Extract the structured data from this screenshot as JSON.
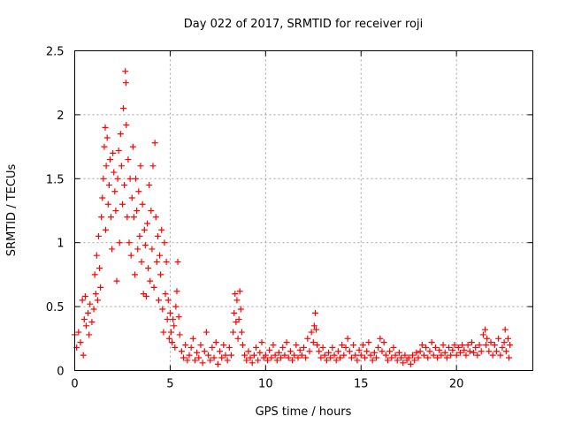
{
  "chart_data": {
    "type": "scatter",
    "title": "Day 022 of 2017, SRMTID for receiver roji",
    "xlabel": "GPS time / hours",
    "ylabel": "SRMTID / TECUs",
    "xlim": [
      0,
      24
    ],
    "ylim": [
      0,
      2.5
    ],
    "x_ticks": [
      0,
      5,
      10,
      15,
      20
    ],
    "x_tick_labels": [
      "0",
      "5",
      "10",
      "15",
      "20"
    ],
    "y_ticks": [
      0,
      0.5,
      1,
      1.5,
      2,
      2.5
    ],
    "y_tick_labels": [
      "0",
      "0.5",
      "1",
      "1.5",
      "2",
      "2.5"
    ],
    "grid": true,
    "marker": "+",
    "series": [
      {
        "name": "SRMTID",
        "color": "#ff0000",
        "points": [
          [
            0.0,
            0.28
          ],
          [
            0.1,
            0.18
          ],
          [
            0.2,
            0.3
          ],
          [
            0.3,
            0.22
          ],
          [
            0.4,
            0.55
          ],
          [
            0.45,
            0.12
          ],
          [
            0.5,
            0.4
          ],
          [
            0.55,
            0.58
          ],
          [
            0.6,
            0.35
          ],
          [
            0.7,
            0.45
          ],
          [
            0.75,
            0.28
          ],
          [
            0.8,
            0.52
          ],
          [
            0.9,
            0.38
          ],
          [
            1.0,
            0.48
          ],
          [
            1.05,
            0.75
          ],
          [
            1.1,
            0.6
          ],
          [
            1.15,
            0.9
          ],
          [
            1.2,
            0.55
          ],
          [
            1.25,
            1.05
          ],
          [
            1.3,
            0.8
          ],
          [
            1.35,
            0.65
          ],
          [
            1.4,
            1.2
          ],
          [
            1.45,
            1.35
          ],
          [
            1.5,
            1.5
          ],
          [
            1.55,
            1.75
          ],
          [
            1.6,
            1.9
          ],
          [
            1.62,
            1.1
          ],
          [
            1.65,
            1.6
          ],
          [
            1.7,
            1.82
          ],
          [
            1.75,
            1.3
          ],
          [
            1.8,
            1.45
          ],
          [
            1.85,
            1.65
          ],
          [
            1.9,
            1.2
          ],
          [
            1.95,
            0.95
          ],
          [
            2.0,
            1.7
          ],
          [
            2.05,
            1.55
          ],
          [
            2.1,
            1.4
          ],
          [
            2.15,
            1.25
          ],
          [
            2.2,
            0.7
          ],
          [
            2.25,
            1.5
          ],
          [
            2.3,
            1.72
          ],
          [
            2.35,
            1.0
          ],
          [
            2.4,
            1.85
          ],
          [
            2.45,
            1.6
          ],
          [
            2.5,
            1.3
          ],
          [
            2.55,
            2.05
          ],
          [
            2.6,
            1.45
          ],
          [
            2.65,
            2.34
          ],
          [
            2.68,
            2.25
          ],
          [
            2.7,
            1.92
          ],
          [
            2.75,
            1.2
          ],
          [
            2.8,
            1.65
          ],
          [
            2.85,
            1.0
          ],
          [
            2.9,
            1.5
          ],
          [
            2.95,
            0.9
          ],
          [
            3.0,
            1.35
          ],
          [
            3.05,
            1.75
          ],
          [
            3.1,
            1.2
          ],
          [
            3.15,
            0.75
          ],
          [
            3.2,
            1.5
          ],
          [
            3.25,
            1.25
          ],
          [
            3.3,
            0.95
          ],
          [
            3.35,
            1.4
          ],
          [
            3.4,
            1.05
          ],
          [
            3.45,
            1.6
          ],
          [
            3.5,
            0.85
          ],
          [
            3.55,
            1.3
          ],
          [
            3.6,
            0.6
          ],
          [
            3.65,
            1.1
          ],
          [
            3.7,
            0.98
          ],
          [
            3.75,
            0.58
          ],
          [
            3.8,
            1.15
          ],
          [
            3.85,
            0.8
          ],
          [
            3.9,
            1.45
          ],
          [
            3.95,
            0.7
          ],
          [
            4.0,
            1.25
          ],
          [
            4.05,
            0.95
          ],
          [
            4.1,
            1.6
          ],
          [
            4.15,
            0.65
          ],
          [
            4.2,
            1.78
          ],
          [
            4.25,
            1.2
          ],
          [
            4.3,
            0.85
          ],
          [
            4.35,
            1.05
          ],
          [
            4.4,
            0.55
          ],
          [
            4.45,
            0.9
          ],
          [
            4.5,
            0.75
          ],
          [
            4.55,
            1.1
          ],
          [
            4.6,
            0.48
          ],
          [
            4.65,
            0.3
          ],
          [
            4.7,
            1.0
          ],
          [
            4.75,
            0.6
          ],
          [
            4.8,
            0.85
          ],
          [
            4.85,
            0.4
          ],
          [
            4.9,
            0.55
          ],
          [
            4.95,
            0.25
          ],
          [
            5.0,
            0.45
          ],
          [
            5.05,
            0.3
          ],
          [
            5.1,
            0.22
          ],
          [
            5.15,
            0.4
          ],
          [
            5.2,
            0.35
          ],
          [
            5.25,
            0.18
          ],
          [
            5.3,
            0.5
          ],
          [
            5.35,
            0.62
          ],
          [
            5.4,
            0.85
          ],
          [
            5.45,
            0.42
          ],
          [
            5.5,
            0.28
          ],
          [
            5.6,
            0.15
          ],
          [
            5.7,
            0.1
          ],
          [
            5.8,
            0.2
          ],
          [
            5.9,
            0.08
          ],
          [
            6.0,
            0.12
          ],
          [
            6.1,
            0.18
          ],
          [
            6.2,
            0.25
          ],
          [
            6.3,
            0.08
          ],
          [
            6.4,
            0.14
          ],
          [
            6.5,
            0.1
          ],
          [
            6.6,
            0.2
          ],
          [
            6.7,
            0.06
          ],
          [
            6.8,
            0.15
          ],
          [
            6.9,
            0.3
          ],
          [
            7.0,
            0.12
          ],
          [
            7.1,
            0.08
          ],
          [
            7.2,
            0.18
          ],
          [
            7.3,
            0.1
          ],
          [
            7.4,
            0.22
          ],
          [
            7.5,
            0.05
          ],
          [
            7.6,
            0.15
          ],
          [
            7.7,
            0.1
          ],
          [
            7.8,
            0.2
          ],
          [
            7.9,
            0.12
          ],
          [
            8.0,
            0.08
          ],
          [
            8.1,
            0.18
          ],
          [
            8.2,
            0.12
          ],
          [
            8.3,
            0.3
          ],
          [
            8.35,
            0.45
          ],
          [
            8.4,
            0.6
          ],
          [
            8.45,
            0.38
          ],
          [
            8.5,
            0.55
          ],
          [
            8.55,
            0.25
          ],
          [
            8.6,
            0.4
          ],
          [
            8.65,
            0.62
          ],
          [
            8.7,
            0.48
          ],
          [
            8.75,
            0.3
          ],
          [
            8.8,
            0.2
          ],
          [
            8.9,
            0.12
          ],
          [
            9.0,
            0.08
          ],
          [
            9.1,
            0.15
          ],
          [
            9.2,
            0.1
          ],
          [
            9.3,
            0.06
          ],
          [
            9.4,
            0.12
          ],
          [
            9.5,
            0.18
          ],
          [
            9.6,
            0.08
          ],
          [
            9.7,
            0.14
          ],
          [
            9.8,
            0.22
          ],
          [
            9.9,
            0.1
          ],
          [
            10.0,
            0.12
          ],
          [
            10.1,
            0.08
          ],
          [
            10.2,
            0.16
          ],
          [
            10.3,
            0.1
          ],
          [
            10.4,
            0.2
          ],
          [
            10.5,
            0.12
          ],
          [
            10.6,
            0.08
          ],
          [
            10.7,
            0.14
          ],
          [
            10.8,
            0.1
          ],
          [
            10.9,
            0.18
          ],
          [
            11.0,
            0.12
          ],
          [
            11.1,
            0.22
          ],
          [
            11.2,
            0.1
          ],
          [
            11.3,
            0.15
          ],
          [
            11.4,
            0.08
          ],
          [
            11.5,
            0.12
          ],
          [
            11.6,
            0.2
          ],
          [
            11.7,
            0.1
          ],
          [
            11.8,
            0.16
          ],
          [
            11.9,
            0.12
          ],
          [
            12.0,
            0.18
          ],
          [
            12.1,
            0.1
          ],
          [
            12.2,
            0.25
          ],
          [
            12.3,
            0.15
          ],
          [
            12.4,
            0.3
          ],
          [
            12.5,
            0.22
          ],
          [
            12.55,
            0.35
          ],
          [
            12.6,
            0.45
          ],
          [
            12.65,
            0.32
          ],
          [
            12.7,
            0.2
          ],
          [
            12.8,
            0.15
          ],
          [
            12.9,
            0.1
          ],
          [
            13.0,
            0.18
          ],
          [
            13.1,
            0.12
          ],
          [
            13.2,
            0.08
          ],
          [
            13.3,
            0.14
          ],
          [
            13.4,
            0.1
          ],
          [
            13.5,
            0.18
          ],
          [
            13.6,
            0.12
          ],
          [
            13.7,
            0.08
          ],
          [
            13.8,
            0.15
          ],
          [
            13.9,
            0.1
          ],
          [
            14.0,
            0.2
          ],
          [
            14.1,
            0.12
          ],
          [
            14.2,
            0.18
          ],
          [
            14.3,
            0.25
          ],
          [
            14.4,
            0.15
          ],
          [
            14.5,
            0.1
          ],
          [
            14.6,
            0.2
          ],
          [
            14.7,
            0.12
          ],
          [
            14.8,
            0.08
          ],
          [
            14.9,
            0.16
          ],
          [
            15.0,
            0.12
          ],
          [
            15.1,
            0.2
          ],
          [
            15.2,
            0.1
          ],
          [
            15.3,
            0.15
          ],
          [
            15.4,
            0.22
          ],
          [
            15.5,
            0.12
          ],
          [
            15.6,
            0.08
          ],
          [
            15.7,
            0.14
          ],
          [
            15.8,
            0.1
          ],
          [
            15.9,
            0.18
          ],
          [
            16.0,
            0.25
          ],
          [
            16.1,
            0.15
          ],
          [
            16.2,
            0.22
          ],
          [
            16.3,
            0.12
          ],
          [
            16.4,
            0.08
          ],
          [
            16.5,
            0.15
          ],
          [
            16.6,
            0.1
          ],
          [
            16.7,
            0.18
          ],
          [
            16.8,
            0.12
          ],
          [
            16.9,
            0.08
          ],
          [
            17.0,
            0.14
          ],
          [
            17.1,
            0.1
          ],
          [
            17.2,
            0.06
          ],
          [
            17.3,
            0.12
          ],
          [
            17.4,
            0.08
          ],
          [
            17.5,
            0.1
          ],
          [
            17.6,
            0.05
          ],
          [
            17.7,
            0.12
          ],
          [
            17.8,
            0.08
          ],
          [
            17.9,
            0.14
          ],
          [
            18.0,
            0.1
          ],
          [
            18.1,
            0.15
          ],
          [
            18.2,
            0.2
          ],
          [
            18.3,
            0.12
          ],
          [
            18.4,
            0.18
          ],
          [
            18.5,
            0.1
          ],
          [
            18.6,
            0.15
          ],
          [
            18.7,
            0.22
          ],
          [
            18.8,
            0.12
          ],
          [
            18.9,
            0.18
          ],
          [
            19.0,
            0.1
          ],
          [
            19.1,
            0.16
          ],
          [
            19.2,
            0.12
          ],
          [
            19.3,
            0.2
          ],
          [
            19.4,
            0.14
          ],
          [
            19.5,
            0.1
          ],
          [
            19.6,
            0.18
          ],
          [
            19.7,
            0.12
          ],
          [
            19.8,
            0.16
          ],
          [
            19.9,
            0.2
          ],
          [
            20.0,
            0.12
          ],
          [
            20.1,
            0.18
          ],
          [
            20.2,
            0.14
          ],
          [
            20.3,
            0.2
          ],
          [
            20.4,
            0.16
          ],
          [
            20.5,
            0.12
          ],
          [
            20.6,
            0.2
          ],
          [
            20.7,
            0.15
          ],
          [
            20.8,
            0.22
          ],
          [
            20.9,
            0.14
          ],
          [
            21.0,
            0.18
          ],
          [
            21.1,
            0.12
          ],
          [
            21.2,
            0.2
          ],
          [
            21.3,
            0.15
          ],
          [
            21.4,
            0.28
          ],
          [
            21.5,
            0.32
          ],
          [
            21.55,
            0.2
          ],
          [
            21.6,
            0.25
          ],
          [
            21.7,
            0.15
          ],
          [
            21.8,
            0.22
          ],
          [
            21.9,
            0.12
          ],
          [
            22.0,
            0.2
          ],
          [
            22.1,
            0.15
          ],
          [
            22.2,
            0.25
          ],
          [
            22.3,
            0.12
          ],
          [
            22.4,
            0.18
          ],
          [
            22.5,
            0.22
          ],
          [
            22.55,
            0.32
          ],
          [
            22.6,
            0.15
          ],
          [
            22.7,
            0.25
          ],
          [
            22.75,
            0.1
          ],
          [
            22.8,
            0.2
          ]
        ]
      }
    ]
  }
}
